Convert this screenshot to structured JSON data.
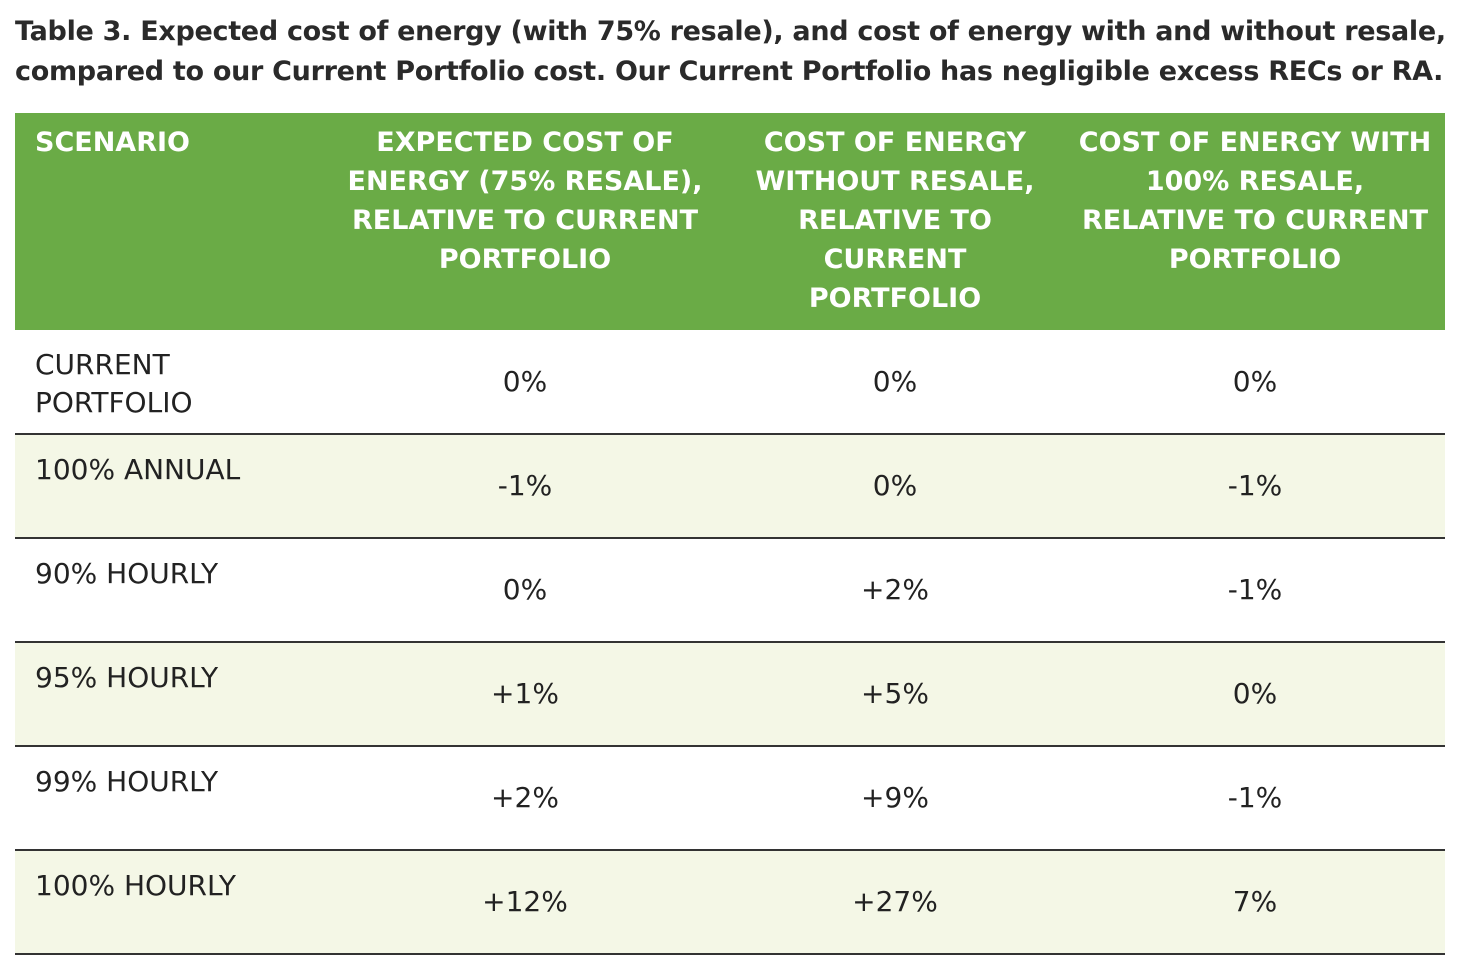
{
  "caption": {
    "lines": [
      "Table 3. Expected cost of energy (with 75% resale), and cost of energy with and without resale,",
      "compared to our Current Portfolio cost. Our Current Portfolio has negligible excess RECs or RA."
    ]
  },
  "table": {
    "header": [
      "SCENARIO",
      "EXPECTED COST OF ENERGY (75% RESALE), RELATIVE TO CURRENT PORTFOLIO",
      "COST OF ENERGY WITHOUT RESALE, RELATIVE TO CURRENT PORTFOLIO",
      "COST OF ENERGY WITH 100% RESALE, RELATIVE TO CURRENT PORTFOLIO"
    ],
    "rows": [
      [
        "CURRENT PORTFOLIO",
        "0%",
        "0%",
        "0%"
      ],
      [
        "100% ANNUAL",
        "-1%",
        "0%",
        "-1%"
      ],
      [
        "90% HOURLY",
        "0%",
        "+2%",
        "-1%"
      ],
      [
        "95% HOURLY",
        "+1%",
        "+5%",
        "0%"
      ],
      [
        "99% HOURLY",
        "+2%",
        "+9%",
        "-1%"
      ],
      [
        "100% HOURLY",
        "+12%",
        "+27%",
        "7%"
      ]
    ]
  }
}
